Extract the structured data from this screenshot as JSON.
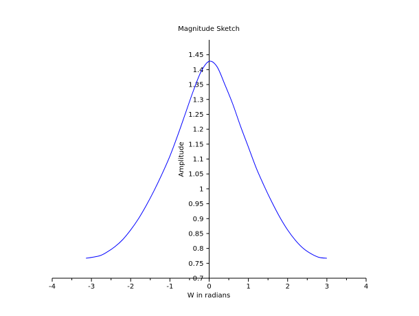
{
  "chart_data": {
    "type": "line",
    "title": "Magnitude Sketch",
    "xlabel": "W in radians",
    "ylabel": "Amplitude",
    "xlim": [
      -4,
      4
    ],
    "ylim": [
      0.7,
      1.5
    ],
    "grid": false,
    "legend": "none",
    "axes_through_origin": true,
    "x_ticks": [
      -4,
      -3,
      -2,
      -1,
      0,
      1,
      2,
      3,
      4
    ],
    "x_tick_labels": [
      "-4",
      "-3",
      "-2",
      "-1",
      "0",
      "1",
      "2",
      "3",
      "4"
    ],
    "y_ticks": [
      0.7,
      0.75,
      0.8,
      0.85,
      0.9,
      0.95,
      1.0,
      1.05,
      1.1,
      1.15,
      1.2,
      1.25,
      1.3,
      1.35,
      1.4,
      1.45
    ],
    "y_tick_labels": [
      "0.7",
      "0.75",
      "0.8",
      "0.85",
      "0.9",
      "0.95",
      "1",
      "1.05",
      "1.1",
      "1.15",
      "1.2",
      "1.25",
      "1.3",
      "1.35",
      "1.4",
      "1.45"
    ],
    "series": [
      {
        "color": "#0000ff",
        "x": [
          -3.14,
          -2.8,
          -2.6,
          -2.4,
          -2.2,
          -2.0,
          -1.8,
          -1.6,
          -1.4,
          -1.2,
          -1.0,
          -0.8,
          -0.6,
          -0.4,
          -0.2,
          0.0,
          0.2,
          0.4,
          0.6,
          0.8,
          1.0,
          1.2,
          1.4,
          1.6,
          1.8,
          2.0,
          2.2,
          2.4,
          2.6,
          2.8,
          3.0
        ],
        "y": [
          0.767,
          0.775,
          0.788,
          0.806,
          0.83,
          0.862,
          0.9,
          0.945,
          0.995,
          1.05,
          1.11,
          1.18,
          1.255,
          1.33,
          1.395,
          1.428,
          1.41,
          1.35,
          1.285,
          1.21,
          1.14,
          1.07,
          1.01,
          0.955,
          0.905,
          0.862,
          0.827,
          0.8,
          0.782,
          0.77,
          0.767
        ]
      }
    ]
  }
}
